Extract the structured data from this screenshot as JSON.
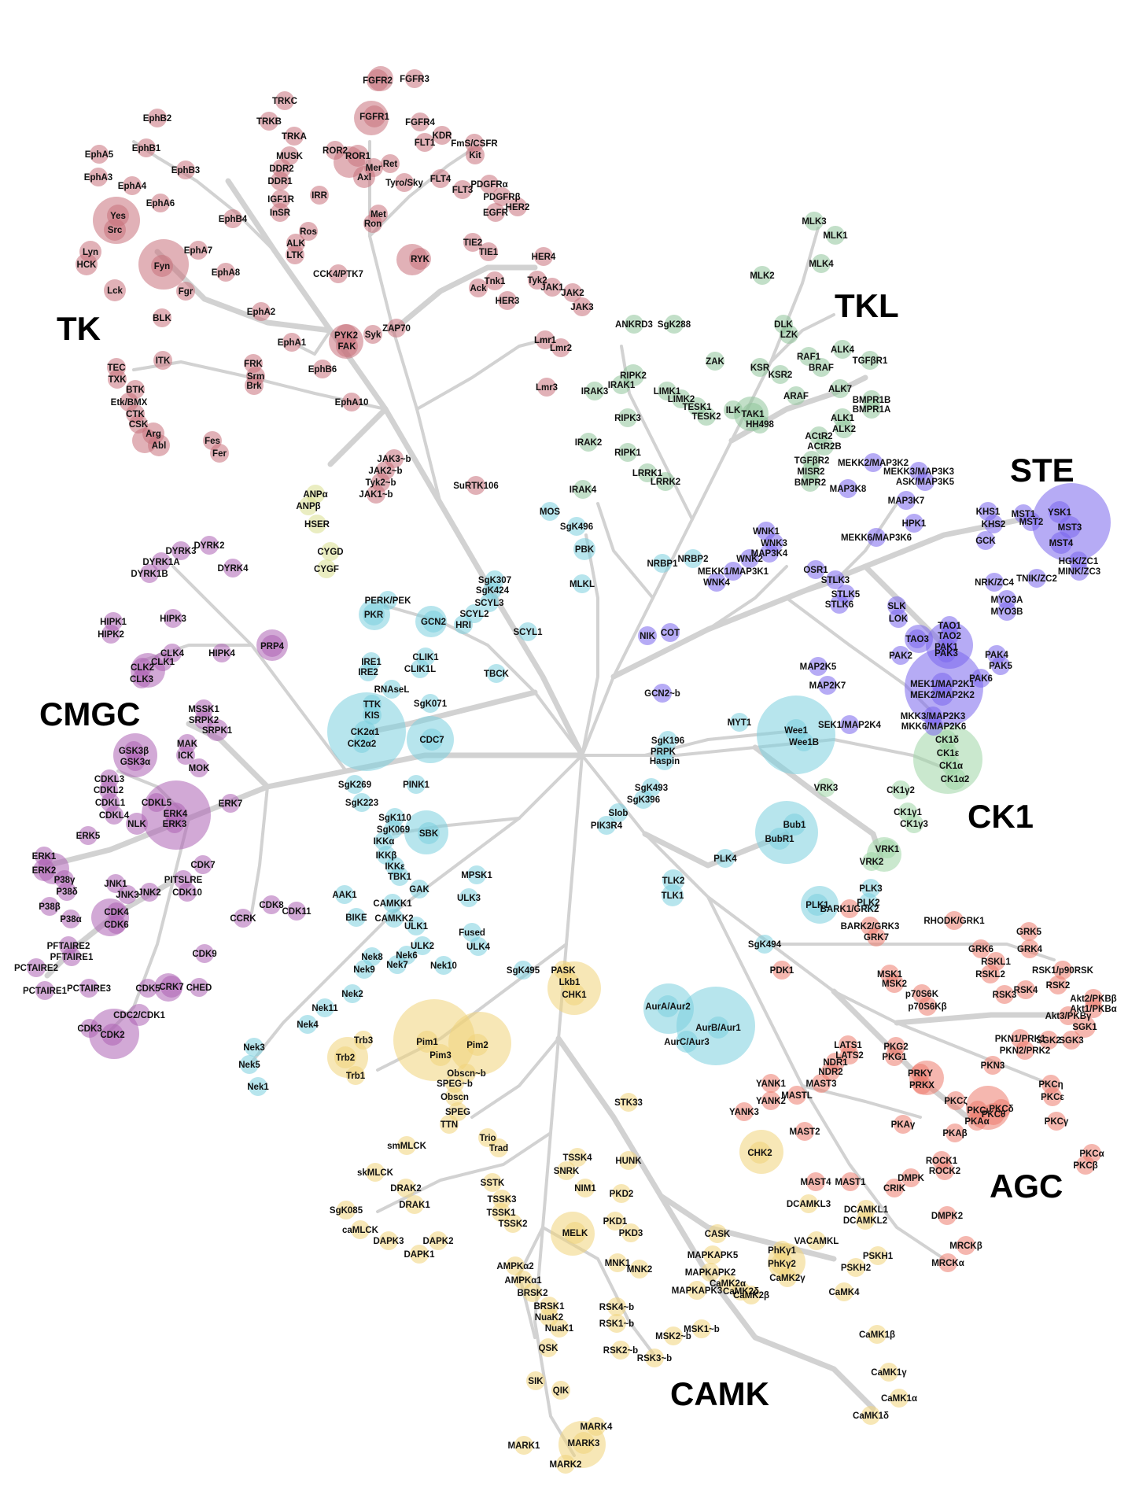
{
  "colors": {
    "branch": "#d2d2d2",
    "TK": "#c9717b",
    "TKL": "#8fc49b",
    "STE": "#7a66ec",
    "CK1": "#9fd6a6",
    "AGC": "#ec7b6e",
    "CAMK": "#f1d37a",
    "CMGC": "#ad63b5",
    "Other": "#7ccfdf",
    "Atypical": "#d8de8e"
  },
  "groups": [
    {
      "id": "TK",
      "label": "TK"
    },
    {
      "id": "TKL",
      "label": "TKL"
    },
    {
      "id": "STE",
      "label": "STE"
    },
    {
      "id": "CK1",
      "label": "CK1"
    },
    {
      "id": "AGC",
      "label": "AGC"
    },
    {
      "id": "CAMK",
      "label": "CAMK"
    },
    {
      "id": "CMGC",
      "label": "CMGC"
    }
  ],
  "kinases": {
    "TK": [
      "EphB2",
      "EphB1",
      "EphA5",
      "EphA3",
      "EphA4",
      "EphB3",
      "EphA6",
      "Yes",
      "Src",
      "EphB4",
      "EphA7",
      "Lyn",
      "HCK",
      "Fyn",
      "EphA8",
      "Fgr",
      "Lck",
      "BLK",
      "EphA2",
      "TRKC",
      "TRKB",
      "TRKA",
      "MUSK",
      "DDR2",
      "DDR1",
      "IGF1R",
      "InSR",
      "IRR",
      "Ros",
      "ALK",
      "LTK",
      "CCK4/PTK7",
      "FGFR2",
      "FGFR3",
      "FGFR1",
      "FGFR4",
      "KDR",
      "FLT1",
      "FmS/CSFR",
      "Kit",
      "ROR2",
      "ROR1",
      "Mer",
      "Ret",
      "Axl",
      "Tyro/Sky",
      "FLT4",
      "PDGFRα",
      "FLT3",
      "PDGFRβ",
      "HER2",
      "EGFR",
      "Met",
      "Ron",
      "RYK",
      "TIE2",
      "TIE1",
      "HER4",
      "Tnk1",
      "Ack",
      "Tyk2",
      "JAK1",
      "JAK2",
      "HER3",
      "JAK3",
      "PYK2",
      "Syk",
      "ZAP70",
      "FAK",
      "EphA1",
      "EphB6",
      "EphA10",
      "Lmr1",
      "Lmr2",
      "Lmr3",
      "ITK",
      "TEC",
      "TXK",
      "BTK",
      "Etk/BMX",
      "CTK",
      "CSK",
      "Arg",
      "Abl",
      "FRK",
      "Srm",
      "Brk",
      "Fes",
      "Fer",
      "JAK3~b",
      "JAK2~b",
      "Tyk2~b",
      "JAK1~b",
      "SuRTK106"
    ],
    "TKL": [
      "MLK3",
      "MLK1",
      "MLK4",
      "MLK2",
      "ANKRD3",
      "SgK288",
      "DLK",
      "LZK",
      "ZAK",
      "KSR",
      "KSR2",
      "RAF1",
      "BRAF",
      "ALK4",
      "TGFβR1",
      "ALK7",
      "ARAF",
      "RIPK2",
      "IRAK1",
      "IRAK3",
      "LIMK1",
      "LIMK2",
      "TESK1",
      "TESK2",
      "ILK",
      "TAK1",
      "HH498",
      "BMPR1B",
      "BMPR1A",
      "ALK1",
      "ALK2",
      "RIPK3",
      "ACtR2",
      "ACtR2B",
      "IRAK2",
      "RIPK1",
      "TGFβR2",
      "MISR2",
      "BMPR2",
      "LRRK1",
      "LRRK2",
      "IRAK4"
    ],
    "STE": [
      "MEKK2/MAP3K2",
      "MEKK3/MAP3K3",
      "ASK/MAP3K5",
      "MAP3K8",
      "MAP3K7",
      "KHS1",
      "KHS2",
      "MST1",
      "MST2",
      "YSK1",
      "MST3",
      "GCK",
      "MST4",
      "HPK1",
      "MEKK6/MAP3K6",
      "HGK/ZC1",
      "MINK/ZC3",
      "WNK1",
      "WNK3",
      "MAP3K4",
      "WNK2",
      "MEKK1/MAP3K1",
      "WNK4",
      "OSR1",
      "STLK3",
      "STLK5",
      "STLK6",
      "NRK/ZC4",
      "TNIK/ZC2",
      "MYO3A",
      "MYO3B",
      "SLK",
      "LOK",
      "TAO3",
      "TAO1",
      "TAO2",
      "PAK1",
      "PAK2",
      "PAK3",
      "PAK4",
      "PAK5",
      "PAK6",
      "MAP2K5",
      "MAP2K7",
      "MEK1/MAP2K1",
      "MEK2/MAP2K2",
      "MKK3/MAP2K3",
      "MKK6/MAP2K6",
      "SEK1/MAP2K4",
      "NIK",
      "COT",
      "GCN2~b"
    ],
    "CK1": [
      "CK1δ",
      "CK1ε",
      "CK1α",
      "CK1α2",
      "VRK3",
      "CK1γ2",
      "CK1γ1",
      "CK1γ3",
      "VRK1",
      "VRK2"
    ],
    "AGC": [
      "BARK1/GRK2",
      "BARK2/GRK3",
      "GRK7",
      "RHODK/GRK1",
      "GRK5",
      "GRK4",
      "GRK6",
      "RSKL1",
      "RSKL2",
      "RSK1/p90RSK",
      "RSK2",
      "RSK3",
      "RSK4",
      "PDK1",
      "MSK1",
      "MSK2",
      "p70S6K",
      "p70S6Kβ",
      "Akt2/PKBβ",
      "Akt1/PKBα",
      "Akt3/PKBγ",
      "SGK1",
      "SGK2",
      "SGK3",
      "LATS1",
      "LATS2",
      "NDR1",
      "NDR2",
      "MAST3",
      "PKG2",
      "PKG1",
      "PKN1/PRK1",
      "PKN2/PRK2",
      "PKN3",
      "PRKY",
      "PRKX",
      "PKCζ",
      "PKCι",
      "PKCδ",
      "PKCθ",
      "PKCη",
      "PKCε",
      "PKAα",
      "PKAβ",
      "PKAγ",
      "PKCγ",
      "YANK1",
      "YANK2",
      "YANK3",
      "MASTL",
      "MAST2",
      "ROCK1",
      "ROCK2",
      "DMPK",
      "PKCα",
      "PKCβ",
      "MAST4",
      "MAST1",
      "CRIK",
      "DMPK2",
      "MRCKβ",
      "MRCKα"
    ],
    "CAMK": [
      "PASK",
      "Lkb1",
      "CHK1",
      "Trb3",
      "Trb2",
      "Trb1",
      "Pim1",
      "Pim3",
      "Pim2",
      "Obscn~b",
      "SPEG~b",
      "Obscn",
      "SPEG",
      "TTN",
      "STK33",
      "smMLCK",
      "skMLCK",
      "Trio",
      "Trad",
      "TSSK4",
      "SNRK",
      "HUNK",
      "SSTK",
      "NIM1",
      "TSSK3",
      "TSSK1",
      "TSSK2",
      "PKD2",
      "CHK2",
      "DRAK2",
      "DRAK1",
      "SgK085",
      "caMLCK",
      "DAPK3",
      "DAPK2",
      "DAPK1",
      "MELK",
      "PKD1",
      "PKD3",
      "CASK",
      "DCAMKL3",
      "DCAMKL1",
      "DCAMKL2",
      "AMPKα2",
      "AMPKα1",
      "BRSK2",
      "MNK1",
      "MNK2",
      "MAPKAPK5",
      "MAPKAPK2",
      "MAPKAPK3",
      "CaMK2α",
      "CaMK2δ",
      "CaMK2β",
      "CaMK2γ",
      "PhKγ1",
      "PhKγ2",
      "VACAMKL",
      "PSKH1",
      "PSKH2",
      "CaMK4",
      "BRSK1",
      "NuaK2",
      "NuaK1",
      "RSK4~b",
      "RSK1~b",
      "MSK2~b",
      "MSK1~b",
      "RSK2~b",
      "RSK3~b",
      "QSK",
      "SIK",
      "QIK",
      "CaMK1β",
      "CaMK1γ",
      "CaMK1α",
      "CaMK1δ",
      "MARK4",
      "MARK3",
      "MARK1",
      "MARK2"
    ],
    "CMGC": [
      "DYRK2",
      "DYRK3",
      "DYRK1A",
      "DYRK1B",
      "DYRK4",
      "HIPK1",
      "HIPK2",
      "HIPK3",
      "PRP4",
      "CLK4",
      "CLK1",
      "CLK2",
      "CLK3",
      "HIPK4",
      "MSSK1",
      "SRPK2",
      "SRPK1",
      "GSK3β",
      "GSK3α",
      "MAK",
      "ICK",
      "MOK",
      "CDKL3",
      "CDKL2",
      "CDKL1",
      "CDKL4",
      "CDKL5",
      "ERK4",
      "ERK3",
      "NLK",
      "ERK7",
      "ERK5",
      "ERK1",
      "ERK2",
      "P38γ",
      "P38δ",
      "P38β",
      "P38α",
      "JNK1",
      "JNK3",
      "JNK2",
      "PITSLRE",
      "CDK10",
      "CDK7",
      "CDK4",
      "CDK6",
      "CDK8",
      "CDK11",
      "CCRK",
      "PFTAIRE2",
      "PFTAIRE1",
      "PCTAIRE2",
      "PCTAIRE1",
      "PCTAIRE3",
      "CDK9",
      "CDK5",
      "CRK7",
      "CHED",
      "CDC2/CDK1",
      "CDK3",
      "CDK2"
    ],
    "Other": [
      "MOS",
      "SgK496",
      "PBK",
      "MLKL",
      "PERK/PEK",
      "PKR",
      "GCN2",
      "SgK307",
      "SgK424",
      "SCYL3",
      "SCYL2",
      "HRI",
      "SCYL1",
      "IRE1",
      "IRE2",
      "CLIK1",
      "CLIK1L",
      "TBCK",
      "RNAseL",
      "TTK",
      "KIS",
      "SgK071",
      "CK2α1",
      "CK2α2",
      "CDC7",
      "NRBP1",
      "NRBP2",
      "MYT1",
      "Wee1",
      "Wee1B",
      "SgK196",
      "PRPK",
      "Haspin",
      "PINK1",
      "SgK269",
      "SgK223",
      "SgK493",
      "SgK396",
      "Slob",
      "PIK3R4",
      "SgK110",
      "SgK069",
      "SBK",
      "IKKα",
      "IKKβ",
      "IKKε",
      "TBK1",
      "Bub1",
      "BubR1",
      "PLK4",
      "TLK2",
      "TLK1",
      "PLK3",
      "PLK2",
      "PLK1",
      "MPSK1",
      "GAK",
      "ULK3",
      "AAK1",
      "CAMKK1",
      "BIKE",
      "CAMKK2",
      "ULK1",
      "Fused",
      "ULK2",
      "ULK4",
      "Nek8",
      "Nek6",
      "Nek9",
      "Nek7",
      "Nek10",
      "Nek2",
      "Nek11",
      "Nek4",
      "Nek3",
      "Nek5",
      "Nek1",
      "SgK494",
      "SgK495",
      "AurA/Aur2",
      "AurB/Aur1",
      "AurC/Aur3"
    ],
    "Atypical": [
      "ANPα",
      "ANPβ",
      "HSER",
      "CYGD",
      "CYGF"
    ]
  }
}
